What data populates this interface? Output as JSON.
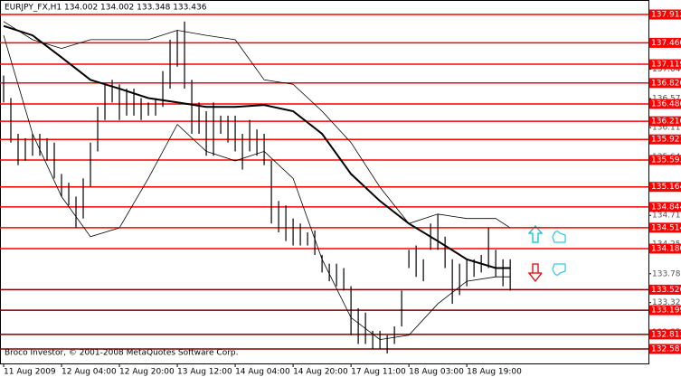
{
  "chart_data": {
    "type": "ohlc",
    "title": "EURJPY_FX,H1  134.002 134.002 133.348 133.436",
    "footer": "Broco Investor, © 2001-2008 MetaQuotes Software Corp.",
    "xlim": [
      -0.5,
      89.1
    ],
    "xticks": [
      {
        "value": 0,
        "label": "11 Aug 2009"
      },
      {
        "value": 8,
        "label": "12 Aug 04:00"
      },
      {
        "value": 16,
        "label": "12 Aug 20:00"
      },
      {
        "value": 24,
        "label": "13 Aug 12:00"
      },
      {
        "value": 32,
        "label": "14 Aug 04:00"
      },
      {
        "value": 40,
        "label": "14 Aug 20:00"
      },
      {
        "value": 48,
        "label": "17 Aug 11:00"
      },
      {
        "value": 56,
        "label": "18 Aug 03:00"
      },
      {
        "value": 64,
        "label": "18 Aug 19:00"
      }
    ],
    "ylim": [
      132.35,
      138.143
    ],
    "yticks": [
      {
        "value": 137.04,
        "label": "137.040"
      },
      {
        "value": 136.57,
        "label": "136.570"
      },
      {
        "value": 136.11,
        "label": "136.110"
      },
      {
        "value": 135.64,
        "label": "135.640"
      },
      {
        "value": 135.18,
        "label": "135.180"
      },
      {
        "value": 134.71,
        "label": "134.710"
      },
      {
        "value": 134.25,
        "label": "134.250"
      },
      {
        "value": 133.78,
        "label": "133.780"
      },
      {
        "value": 133.32,
        "label": "133.320"
      },
      {
        "value": 132.85,
        "label": "132.850"
      }
    ],
    "bar_color": "#000000",
    "high": [
      136.94,
      136.58,
      136.01,
      135.94,
      136.01,
      136.01,
      135.94,
      135.87,
      135.37,
      135.23,
      135.01,
      135.3,
      135.87,
      136.44,
      136.8,
      136.87,
      136.8,
      136.73,
      136.73,
      136.58,
      136.51,
      136.58,
      137.01,
      137.51,
      137.66,
      137.8,
      136.87,
      136.51,
      136.37,
      136.51,
      136.3,
      136.3,
      136.3,
      136.01,
      136.23,
      136.08,
      136.01,
      135.58,
      134.94,
      134.87,
      134.66,
      134.58,
      134.44,
      134.47,
      134.08,
      133.94,
      133.94,
      133.87,
      133.58,
      133.23,
      133.16,
      132.87,
      132.87,
      132.8,
      132.94,
      133.51,
      134.16,
      134.23,
      134.01,
      134.58,
      134.73,
      134.37,
      134.01,
      133.94,
      134.01,
      134.01,
      134.08,
      134.51,
      134.16,
      134.01,
      134.01
    ],
    "low": [
      136.51,
      135.87,
      135.51,
      135.58,
      135.66,
      135.66,
      135.58,
      135.3,
      135.01,
      134.87,
      134.51,
      134.66,
      135.16,
      135.73,
      136.23,
      136.51,
      136.23,
      136.3,
      136.3,
      136.23,
      136.3,
      136.3,
      136.44,
      136.73,
      137.08,
      136.73,
      136.01,
      136.01,
      135.66,
      135.66,
      136.01,
      135.87,
      135.73,
      135.44,
      135.73,
      135.66,
      135.51,
      134.58,
      134.44,
      134.3,
      134.23,
      134.23,
      134.23,
      134.08,
      133.8,
      133.66,
      133.58,
      133.51,
      132.8,
      132.66,
      132.66,
      132.58,
      132.58,
      132.51,
      132.66,
      132.94,
      133.87,
      133.73,
      133.66,
      134.16,
      134.16,
      133.87,
      133.3,
      133.44,
      133.58,
      133.73,
      133.8,
      133.87,
      133.73,
      133.58,
      133.51
    ],
    "series": [
      {
        "color": "#000000",
        "line_width": 2,
        "x": [
          0,
          4,
          8,
          12,
          16,
          20,
          24,
          28,
          32,
          36,
          40,
          44,
          48,
          52,
          56,
          60,
          64,
          68,
          70
        ],
        "values": [
          137.73,
          137.58,
          137.23,
          136.87,
          136.73,
          136.58,
          136.51,
          136.44,
          136.44,
          136.47,
          136.37,
          136.01,
          135.37,
          134.94,
          134.58,
          134.3,
          134.01,
          133.87,
          133.87
        ]
      },
      {
        "color": "#000000",
        "line_width": 0.8,
        "x": [
          0,
          4,
          8,
          12,
          16,
          20,
          24,
          28,
          32,
          36,
          40,
          44,
          48,
          52,
          56,
          60,
          64,
          68,
          70
        ],
        "values": [
          137.8,
          137.51,
          137.37,
          137.51,
          137.51,
          137.51,
          137.66,
          137.58,
          137.51,
          136.87,
          136.8,
          136.37,
          135.87,
          135.16,
          134.58,
          134.73,
          134.66,
          134.66,
          134.51
        ]
      },
      {
        "color": "#000000",
        "line_width": 0.8,
        "x": [
          0,
          4,
          8,
          12,
          16,
          20,
          24,
          28,
          32,
          36,
          40,
          44,
          48,
          52,
          56,
          60,
          64,
          68,
          70
        ],
        "values": [
          137.58,
          136.01,
          135.01,
          134.37,
          134.51,
          135.3,
          136.16,
          135.73,
          135.58,
          135.73,
          135.3,
          134.01,
          133.08,
          132.73,
          132.8,
          133.3,
          133.66,
          133.73,
          133.73
        ]
      }
    ],
    "levels": [
      {
        "value": 137.912,
        "label": "137.912",
        "color": "#ff0000"
      },
      {
        "value": 137.46,
        "label": "137.460",
        "color": "#ff0000"
      },
      {
        "value": 137.119,
        "label": "137.119",
        "color": "#ff0000"
      },
      {
        "value": 136.82,
        "label": "136.820",
        "color": "#ff0000"
      },
      {
        "value": 136.486,
        "label": "136.486",
        "color": "#ff0000"
      },
      {
        "value": 136.21,
        "label": "136.210",
        "color": "#ff0000"
      },
      {
        "value": 135.921,
        "label": "135.921",
        "color": "#ff0000"
      },
      {
        "value": 135.593,
        "label": "135.593",
        "color": "#ff0000"
      },
      {
        "value": 135.164,
        "label": "135.164",
        "color": "#ff0000"
      },
      {
        "value": 134.844,
        "label": "134.844",
        "color": "#ff0000"
      },
      {
        "value": 134.514,
        "label": "134.514",
        "color": "#ff0000"
      },
      {
        "value": 134.18,
        "label": "134.180",
        "color": "#ff0000"
      },
      {
        "value": 133.526,
        "label": "133.526",
        "color": "#800000"
      },
      {
        "value": 133.199,
        "label": "133.199",
        "color": "#800000"
      },
      {
        "value": 132.813,
        "label": "132.813",
        "color": "#800000"
      },
      {
        "value": 132.581,
        "label": "132.581",
        "color": "#800000"
      }
    ]
  }
}
